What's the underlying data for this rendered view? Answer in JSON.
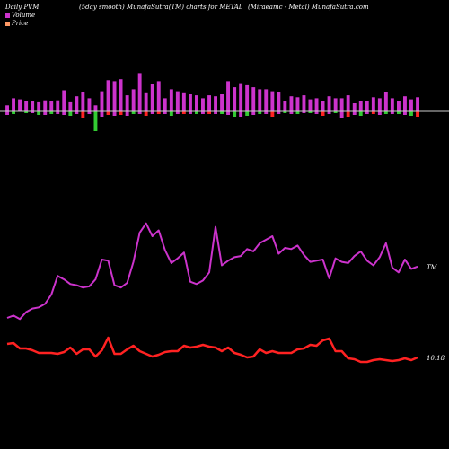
{
  "header": {
    "left": "Daily PVM",
    "middle": "(5day smooth) MunafaSutra(TM) charts for METAL",
    "right": "(Miraeamc - Metal) MunafaSutra.com"
  },
  "legend": [
    {
      "label": "Volume",
      "color": "#cc33cc"
    },
    {
      "label": "Price",
      "color": "#ff9966"
    }
  ],
  "end_labels": {
    "pvm": "TM",
    "price": "10.18"
  },
  "colors": {
    "up": "#cc33cc",
    "green": "#33cc33",
    "red": "#ff2222",
    "pvm_line": "#cc33cc",
    "price_line": "#ff2222",
    "axis": "#cccccc"
  },
  "chart_data": {
    "type": "bar+line",
    "volume_bars": {
      "values": [
        6,
        13,
        12,
        10,
        10,
        9,
        11,
        10,
        11,
        21,
        9,
        15,
        19,
        13,
        6,
        20,
        31,
        30,
        32,
        16,
        22,
        38,
        18,
        27,
        30,
        13,
        22,
        20,
        18,
        17,
        16,
        13,
        16,
        15,
        17,
        30,
        24,
        28,
        26,
        24,
        22,
        22,
        20,
        19,
        10,
        15,
        14,
        16,
        12,
        13,
        10,
        15,
        13,
        13,
        16,
        8,
        10,
        10,
        14,
        13,
        19,
        13,
        10,
        15,
        12,
        14
      ],
      "negative": [
        -4,
        -3,
        0,
        -2,
        -2,
        -4,
        -4,
        -3,
        -3,
        -4,
        -5,
        -3,
        -7,
        -3,
        -22,
        -6,
        -4,
        -5,
        -4,
        -5,
        -3,
        -3,
        -5,
        -3,
        -3,
        -3,
        -5,
        -3,
        -3,
        -3,
        -3,
        -3,
        -3,
        -3,
        -3,
        -4,
        -6,
        -6,
        -5,
        -4,
        -3,
        -3,
        -6,
        -3,
        -2,
        -3,
        -3,
        -2,
        -2,
        -3,
        -5,
        -3,
        -2,
        -7,
        -6,
        -4,
        -5,
        -3,
        -3,
        -4,
        -3,
        -3,
        -3,
        -4,
        -5,
        -6
      ],
      "colors": [
        "up",
        "green",
        "up",
        "green",
        "up",
        "green",
        "up",
        "green",
        "up",
        "up",
        "green",
        "up",
        "red",
        "up",
        "green",
        "up",
        "red",
        "up",
        "red",
        "up",
        "green",
        "up",
        "red",
        "up",
        "red",
        "up",
        "green",
        "up",
        "red",
        "up",
        "green",
        "up",
        "red",
        "up",
        "green",
        "up",
        "green",
        "up",
        "green",
        "up",
        "green",
        "up",
        "red",
        "up",
        "green",
        "up",
        "green",
        "up",
        "green",
        "up",
        "red",
        "up",
        "green",
        "up",
        "red",
        "up",
        "green",
        "up",
        "red",
        "up",
        "green",
        "up",
        "green",
        "up",
        "green",
        "red"
      ]
    },
    "pvm_line": [
      70,
      72,
      69,
      75,
      78,
      79,
      82,
      90,
      106,
      103,
      99,
      98,
      96,
      97,
      103,
      120,
      119,
      98,
      96,
      100,
      118,
      143,
      151,
      140,
      145,
      128,
      117,
      121,
      126,
      101,
      99,
      102,
      109,
      148,
      115,
      119,
      122,
      123,
      129,
      127,
      134,
      137,
      140,
      125,
      130,
      129,
      132,
      124,
      118,
      119,
      120,
      104,
      121,
      118,
      117,
      123,
      127,
      119,
      115,
      122,
      134,
      113,
      109,
      120,
      112,
      114
    ],
    "price_line": [
      117,
      118,
      112,
      112,
      110,
      107,
      107,
      107,
      106,
      108,
      113,
      106,
      111,
      111,
      103,
      110,
      124,
      106,
      106,
      111,
      115,
      109,
      106,
      103,
      105,
      108,
      109,
      109,
      115,
      113,
      114,
      116,
      114,
      113,
      109,
      113,
      107,
      105,
      102,
      103,
      111,
      107,
      109,
      107,
      107,
      107,
      111,
      112,
      116,
      115,
      121,
      123,
      109,
      109,
      101,
      100,
      97,
      97,
      99,
      100,
      99,
      98,
      99,
      101,
      99,
      102
    ],
    "grid": false,
    "legend_position": "top-left"
  }
}
